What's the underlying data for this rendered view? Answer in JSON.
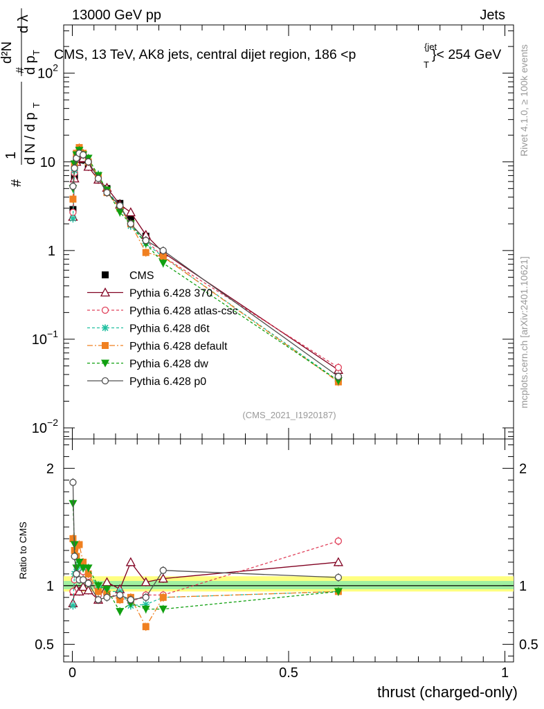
{
  "header": {
    "left": "13000 GeV pp",
    "right": "Jets",
    "title": "CMS, 13 TeV, AK8 jets, central dijet region, 186 <p",
    "title_sup": "{jet",
    "title_sub": "T",
    "title_end": "}< 254 GeV",
    "rivet": "Rivet 4.1.0, ≥ 100k events",
    "mcplots": "mcplots.cern.ch [arXiv:2401.10621]",
    "analysis": "(CMS_2021_I1920187)"
  },
  "chart_data": {
    "type": "line",
    "xlabel": "thrust (charged-only)",
    "xlim": [
      -0.02,
      1.02
    ],
    "xticks": [
      {
        "v": 0,
        "label": "0"
      },
      {
        "v": 0.5,
        "label": "0.5"
      },
      {
        "v": 1,
        "label": "1"
      }
    ],
    "main": {
      "ylabel_hash": "#",
      "ylabel_one": "1",
      "ylabel_den": "d N / d p",
      "ylabel_T": "T",
      "ylabel_num_top": "d²N",
      "ylabel_num_hash": "#",
      "ylabel_num_bot": "d p",
      "ylabel_num_T": "T",
      "ylabel_dlambda": "d λ",
      "ylog": true,
      "ylim": [
        0.0075,
        350
      ],
      "yticks": [
        {
          "v": 0.01,
          "base": "10",
          "exp": "−2"
        },
        {
          "v": 0.1,
          "base": "10",
          "exp": "−1"
        },
        {
          "v": 1,
          "base": "1",
          "exp": ""
        },
        {
          "v": 10,
          "base": "10",
          "exp": ""
        },
        {
          "v": 100,
          "base": "10",
          "exp": "2"
        }
      ]
    },
    "ratio": {
      "ylabel": "Ratio to CMS",
      "ylim": [
        0.35,
        2.25
      ],
      "yticks": [
        {
          "v": 0.5,
          "label": "0.5"
        },
        {
          "v": 1,
          "label": "1"
        },
        {
          "v": 2,
          "label": "2"
        }
      ],
      "band_outer": [
        0.95,
        1.08
      ],
      "band_inner": [
        0.97,
        1.04
      ]
    },
    "x": [
      0.0015,
      0.005,
      0.0095,
      0.016,
      0.025,
      0.037,
      0.06,
      0.08,
      0.11,
      0.135,
      0.17,
      0.21,
      0.615
    ],
    "series": [
      {
        "name": "CMS",
        "color": "#000000",
        "marker": "square",
        "dash": "none",
        "values": [
          2.9,
          7.0,
          10.5,
          11.5,
          10.5,
          9.0,
          7.0,
          5.0,
          3.4,
          2.3,
          1.45,
          0.9,
          0.036
        ],
        "ratio": [
          1.0,
          1.0,
          1.0,
          1.0,
          1.0,
          1.0,
          1.0,
          1.0,
          1.0,
          1.0,
          1.0,
          1.0,
          1.0
        ]
      },
      {
        "name": "Pythia 6.428 370",
        "color": "#800020",
        "marker": "triangle-open",
        "dash": "none",
        "values": [
          2.4,
          6.5,
          10.0,
          10.8,
          11.0,
          8.8,
          6.3,
          5.1,
          3.3,
          2.7,
          1.5,
          0.95,
          0.045
        ],
        "ratio": [
          0.85,
          0.95,
          0.97,
          0.95,
          0.99,
          0.96,
          0.88,
          1.03,
          0.97,
          1.2,
          1.03,
          1.06,
          1.2
        ]
      },
      {
        "name": "Pythia 6.428 atlas-csc",
        "color": "#e0405a",
        "marker": "circle-open",
        "dash": "4,3",
        "values": [
          2.7,
          7.5,
          11.5,
          13.5,
          12.0,
          10.0,
          6.5,
          4.6,
          3.0,
          2.0,
          1.3,
          0.85,
          0.048
        ],
        "ratio": [
          0.95,
          1.05,
          1.1,
          1.15,
          1.12,
          1.08,
          0.92,
          0.93,
          0.9,
          0.86,
          0.92,
          0.92,
          1.38
        ]
      },
      {
        "name": "Pythia 6.428 d6t",
        "color": "#20c0a0",
        "marker": "star",
        "dash": "4,3",
        "values": [
          2.3,
          8.0,
          11.8,
          13.5,
          12.5,
          10.0,
          7.2,
          4.7,
          3.2,
          1.9,
          1.2,
          0.85,
          0.034
        ],
        "ratio": [
          0.83,
          1.1,
          1.12,
          1.18,
          1.15,
          1.1,
          1.0,
          0.95,
          0.95,
          0.83,
          0.84,
          0.9,
          0.95
        ]
      },
      {
        "name": "Pythia 6.428 default",
        "color": "#f08020",
        "marker": "square",
        "dash": "8,3,2,3",
        "values": [
          3.8,
          9.0,
          12.5,
          14.5,
          12.5,
          10.0,
          7.0,
          4.5,
          3.0,
          2.0,
          0.95,
          0.85,
          0.033
        ],
        "ratio": [
          1.4,
          1.3,
          1.25,
          1.35,
          1.2,
          1.1,
          0.95,
          0.93,
          0.88,
          0.9,
          0.65,
          0.9,
          0.95
        ]
      },
      {
        "name": "Pythia 6.428 dw",
        "color": "#10a010",
        "marker": "triangle-down",
        "dash": "4,3",
        "values": [
          5.0,
          9.5,
          12.0,
          13.5,
          12.0,
          11.0,
          7.0,
          4.8,
          2.7,
          2.0,
          1.2,
          0.72,
          0.034
        ],
        "ratio": [
          1.7,
          1.35,
          1.15,
          1.2,
          1.15,
          1.15,
          1.0,
          0.97,
          0.78,
          0.85,
          0.8,
          0.8,
          0.95
        ]
      },
      {
        "name": "Pythia 6.428 p0",
        "color": "#505050",
        "marker": "circle-open",
        "dash": "none",
        "values": [
          5.3,
          8.5,
          11.0,
          12.5,
          12.0,
          10.0,
          6.5,
          4.5,
          3.2,
          2.0,
          1.3,
          1.0,
          0.038
        ],
        "ratio": [
          1.88,
          1.25,
          1.1,
          1.05,
          1.05,
          1.02,
          0.88,
          0.9,
          0.92,
          0.88,
          0.9,
          1.13,
          1.07
        ]
      }
    ]
  }
}
